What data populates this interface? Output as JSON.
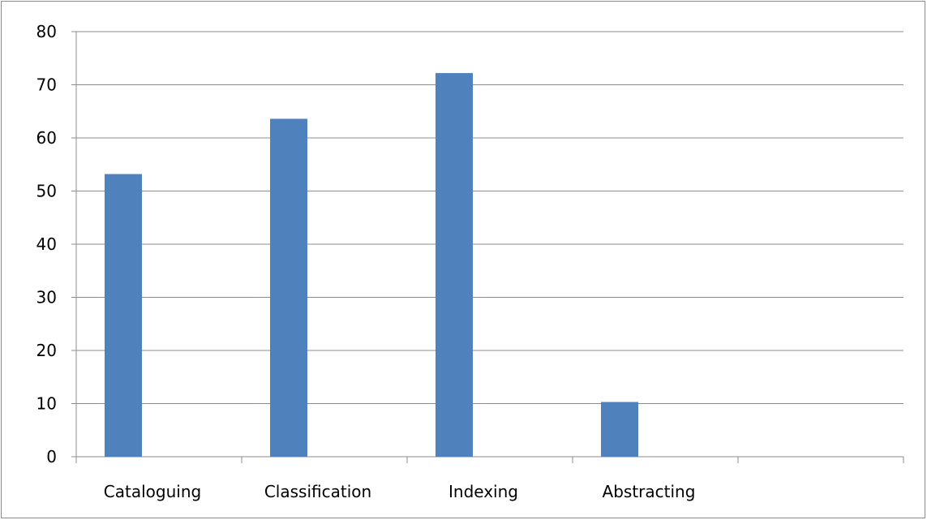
{
  "chart_data": {
    "type": "bar",
    "categories": [
      "Cataloguing",
      "Classification",
      "Indexing",
      "Abstracting",
      ""
    ],
    "values": [
      53.2,
      63.6,
      72.2,
      10.3,
      null
    ],
    "ylim": [
      0,
      80
    ],
    "yticks": [
      0,
      10,
      20,
      30,
      40,
      50,
      60,
      70,
      80
    ],
    "grid": true,
    "legend": "none",
    "bar_color": "#4f81bd",
    "grid_color": "#8c8c8c"
  }
}
